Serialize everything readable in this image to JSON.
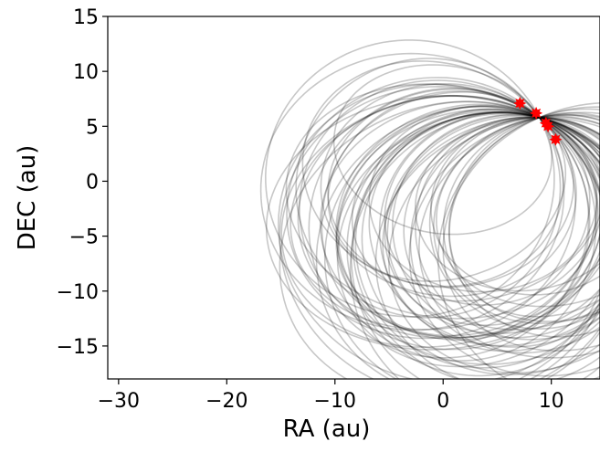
{
  "chart_data": {
    "type": "line",
    "title": "",
    "xlabel": "RA (au)",
    "ylabel": "DEC (au)",
    "xlim": [
      -31,
      14.5
    ],
    "ylim": [
      -18,
      15
    ],
    "xticks": [
      -30,
      -20,
      -10,
      0,
      10
    ],
    "xtick_labels": [
      "−30",
      "−20",
      "−10",
      "0",
      "10"
    ],
    "yticks": [
      15,
      10,
      5,
      0,
      -5,
      -10,
      -15
    ],
    "ytick_labels": [
      "15",
      "10",
      "5",
      "0",
      "−5",
      "−10",
      "−15"
    ],
    "grid": false,
    "legend": "none",
    "orbit_color": "#000000",
    "orbit_opacity": 0.22,
    "point_color": "#ff0000",
    "orbit_count": 60,
    "points": [
      {
        "x": 7.1,
        "y": 7.1
      },
      {
        "x": 8.6,
        "y": 6.2
      },
      {
        "x": 9.5,
        "y": 5.3
      },
      {
        "x": 9.7,
        "y": 5.0
      },
      {
        "x": 10.4,
        "y": 3.8
      }
    ],
    "orbit_envelope": {
      "x_range": [
        -17,
        13
      ],
      "y_range": [
        -13,
        10.5
      ]
    }
  }
}
